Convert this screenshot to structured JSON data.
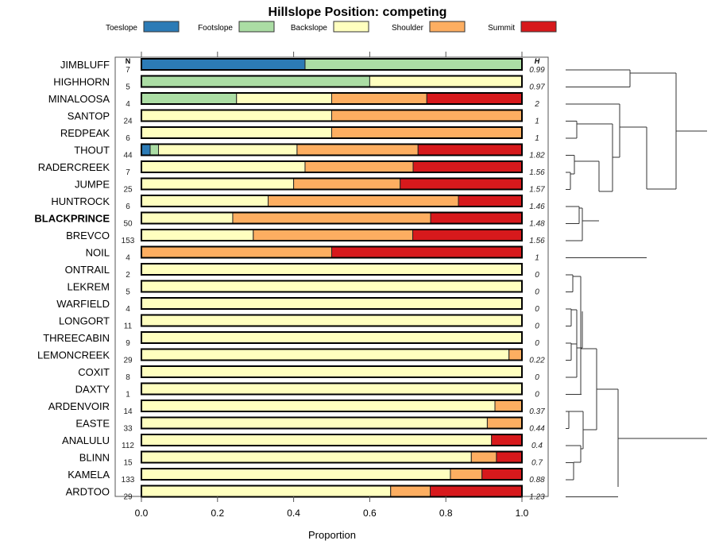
{
  "chart_data": {
    "type": "bar",
    "orientation": "horizontal",
    "stacked": true,
    "title": "Hillslope Position: competing",
    "xlabel": "Proportion",
    "ylabel": "",
    "xlim": [
      0,
      1
    ],
    "x_ticks": [
      "0.0",
      "0.2",
      "0.4",
      "0.6",
      "0.8",
      "1.0"
    ],
    "x_tick_values": [
      0,
      0.2,
      0.4,
      0.6,
      0.8,
      1.0
    ],
    "legend": {
      "placement": "top",
      "entries": [
        {
          "name": "Toeslope",
          "color": "#2c7bb6"
        },
        {
          "name": "Footslope",
          "color": "#abdda4"
        },
        {
          "name": "Backslope",
          "color": "#ffffbf"
        },
        {
          "name": "Shoulder",
          "color": "#fdae61"
        },
        {
          "name": "Summit",
          "color": "#d7191c"
        }
      ]
    },
    "n_header": "N",
    "h_header": "H",
    "highlight": "BLACKPRINCE",
    "categories": [
      "JIMBLUFF",
      "HIGHHORN",
      "MINALOOSA",
      "SANTOP",
      "REDPEAK",
      "THOUT",
      "RADERCREEK",
      "JUMPE",
      "HUNTROCK",
      "BLACKPRINCE",
      "BREVCO",
      "NOIL",
      "ONTRAIL",
      "LEKREM",
      "WARFIELD",
      "LONGORT",
      "THREECABIN",
      "LEMONCREEK",
      "COXIT",
      "DAXTY",
      "ARDENVOIR",
      "EASTE",
      "ANALULU",
      "BLINN",
      "KAMELA",
      "ARDTOO"
    ],
    "n": [
      "7",
      "5",
      "4",
      "24",
      "6",
      "44",
      "7",
      "25",
      "6",
      "50",
      "153",
      "4",
      "2",
      "5",
      "4",
      "11",
      "9",
      "29",
      "8",
      "1",
      "14",
      "33",
      "112",
      "15",
      "133",
      "29"
    ],
    "h": [
      "0.99",
      "0.97",
      "2",
      "1",
      "1",
      "1.82",
      "1.56",
      "1.57",
      "1.46",
      "1.48",
      "1.56",
      "1",
      "0",
      "0",
      "0",
      "0",
      "0",
      "0.22",
      "0",
      "0",
      "0.37",
      "0.44",
      "0.4",
      "0.7",
      "0.88",
      "1.23"
    ],
    "series": [
      {
        "name": "Toeslope",
        "values": [
          0.43,
          0,
          0,
          0,
          0,
          0.023,
          0,
          0,
          0,
          0,
          0,
          0,
          0,
          0,
          0,
          0,
          0,
          0,
          0,
          0,
          0,
          0,
          0,
          0,
          0,
          0
        ]
      },
      {
        "name": "Footslope",
        "values": [
          0.57,
          0.6,
          0.25,
          0,
          0,
          0.022,
          0,
          0,
          0,
          0,
          0,
          0,
          0,
          0,
          0,
          0,
          0,
          0,
          0,
          0,
          0,
          0,
          0,
          0,
          0,
          0
        ]
      },
      {
        "name": "Backslope",
        "values": [
          0,
          0.4,
          0.25,
          0.5,
          0.5,
          0.364,
          0.43,
          0.4,
          0.333,
          0.24,
          0.294,
          0,
          1,
          1,
          1,
          1,
          1,
          0.966,
          1,
          1,
          0.929,
          0.909,
          0.92,
          0.867,
          0.812,
          0.655
        ]
      },
      {
        "name": "Shoulder",
        "values": [
          0,
          0,
          0.25,
          0.5,
          0.5,
          0.318,
          0.284,
          0.28,
          0.5,
          0.52,
          0.419,
          0.5,
          0,
          0,
          0,
          0,
          0,
          0.034,
          0,
          0,
          0.071,
          0.091,
          0,
          0.066,
          0.083,
          0.104
        ]
      },
      {
        "name": "Summit",
        "values": [
          0,
          0,
          0.25,
          0,
          0,
          0.273,
          0.286,
          0.32,
          0.167,
          0.24,
          0.287,
          0.5,
          0,
          0,
          0,
          0,
          0,
          0,
          0,
          0,
          0,
          0,
          0.08,
          0.067,
          0.105,
          0.241
        ]
      }
    ],
    "dendrogram": "hierarchical clustering of rows shown at right"
  }
}
